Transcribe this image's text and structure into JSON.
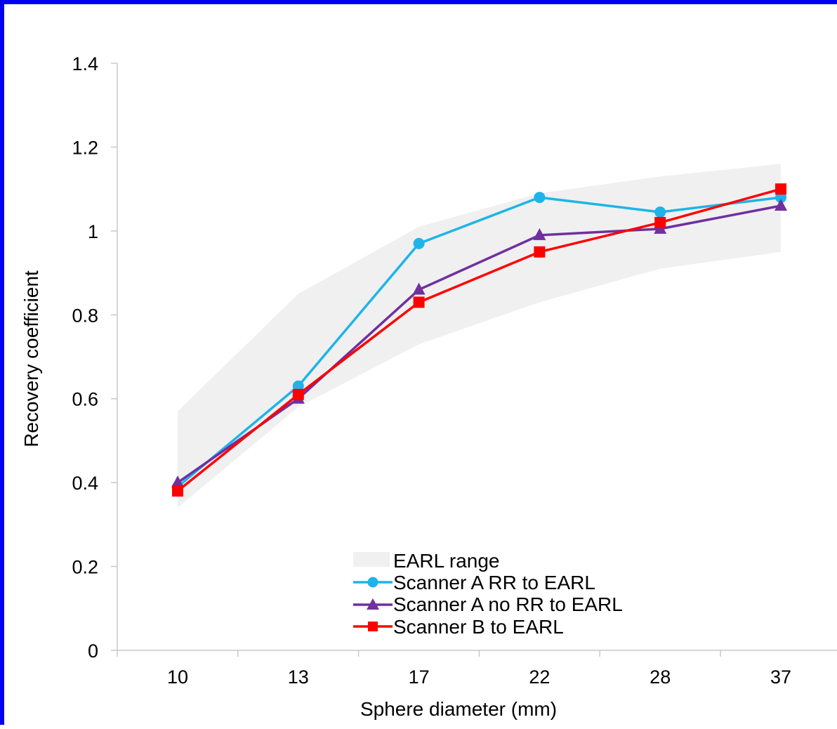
{
  "frame_color": "#0000ee",
  "chart_data": {
    "type": "line",
    "title": "",
    "xlabel": "Sphere diameter (mm)",
    "ylabel": "Recovery coefficient",
    "categories": [
      "10",
      "13",
      "17",
      "22",
      "28",
      "37"
    ],
    "ylim": [
      0,
      1.4
    ],
    "yticks": [
      "0",
      "0.2",
      "0.4",
      "0.6",
      "0.8",
      "1",
      "1.2",
      "1.4"
    ],
    "grid": false,
    "legend_position": "bottom-center",
    "band": {
      "name": "EARL range",
      "color": "#f0f0f0",
      "lower": [
        0.34,
        0.58,
        0.73,
        0.83,
        0.91,
        0.95
      ],
      "upper": [
        0.57,
        0.85,
        1.01,
        1.09,
        1.13,
        1.16
      ]
    },
    "series": [
      {
        "name": "Scanner A RR to EARL",
        "color": "#1eb4e8",
        "marker": "circle",
        "values": [
          0.39,
          0.63,
          0.97,
          1.08,
          1.045,
          1.08
        ]
      },
      {
        "name": "Scanner A no RR to EARL",
        "color": "#7030a0",
        "marker": "triangle",
        "values": [
          0.4,
          0.6,
          0.86,
          0.99,
          1.005,
          1.06
        ]
      },
      {
        "name": "Scanner B to EARL",
        "color": "#ff0000",
        "marker": "square",
        "values": [
          0.38,
          0.61,
          0.83,
          0.95,
          1.02,
          1.1
        ]
      }
    ]
  }
}
